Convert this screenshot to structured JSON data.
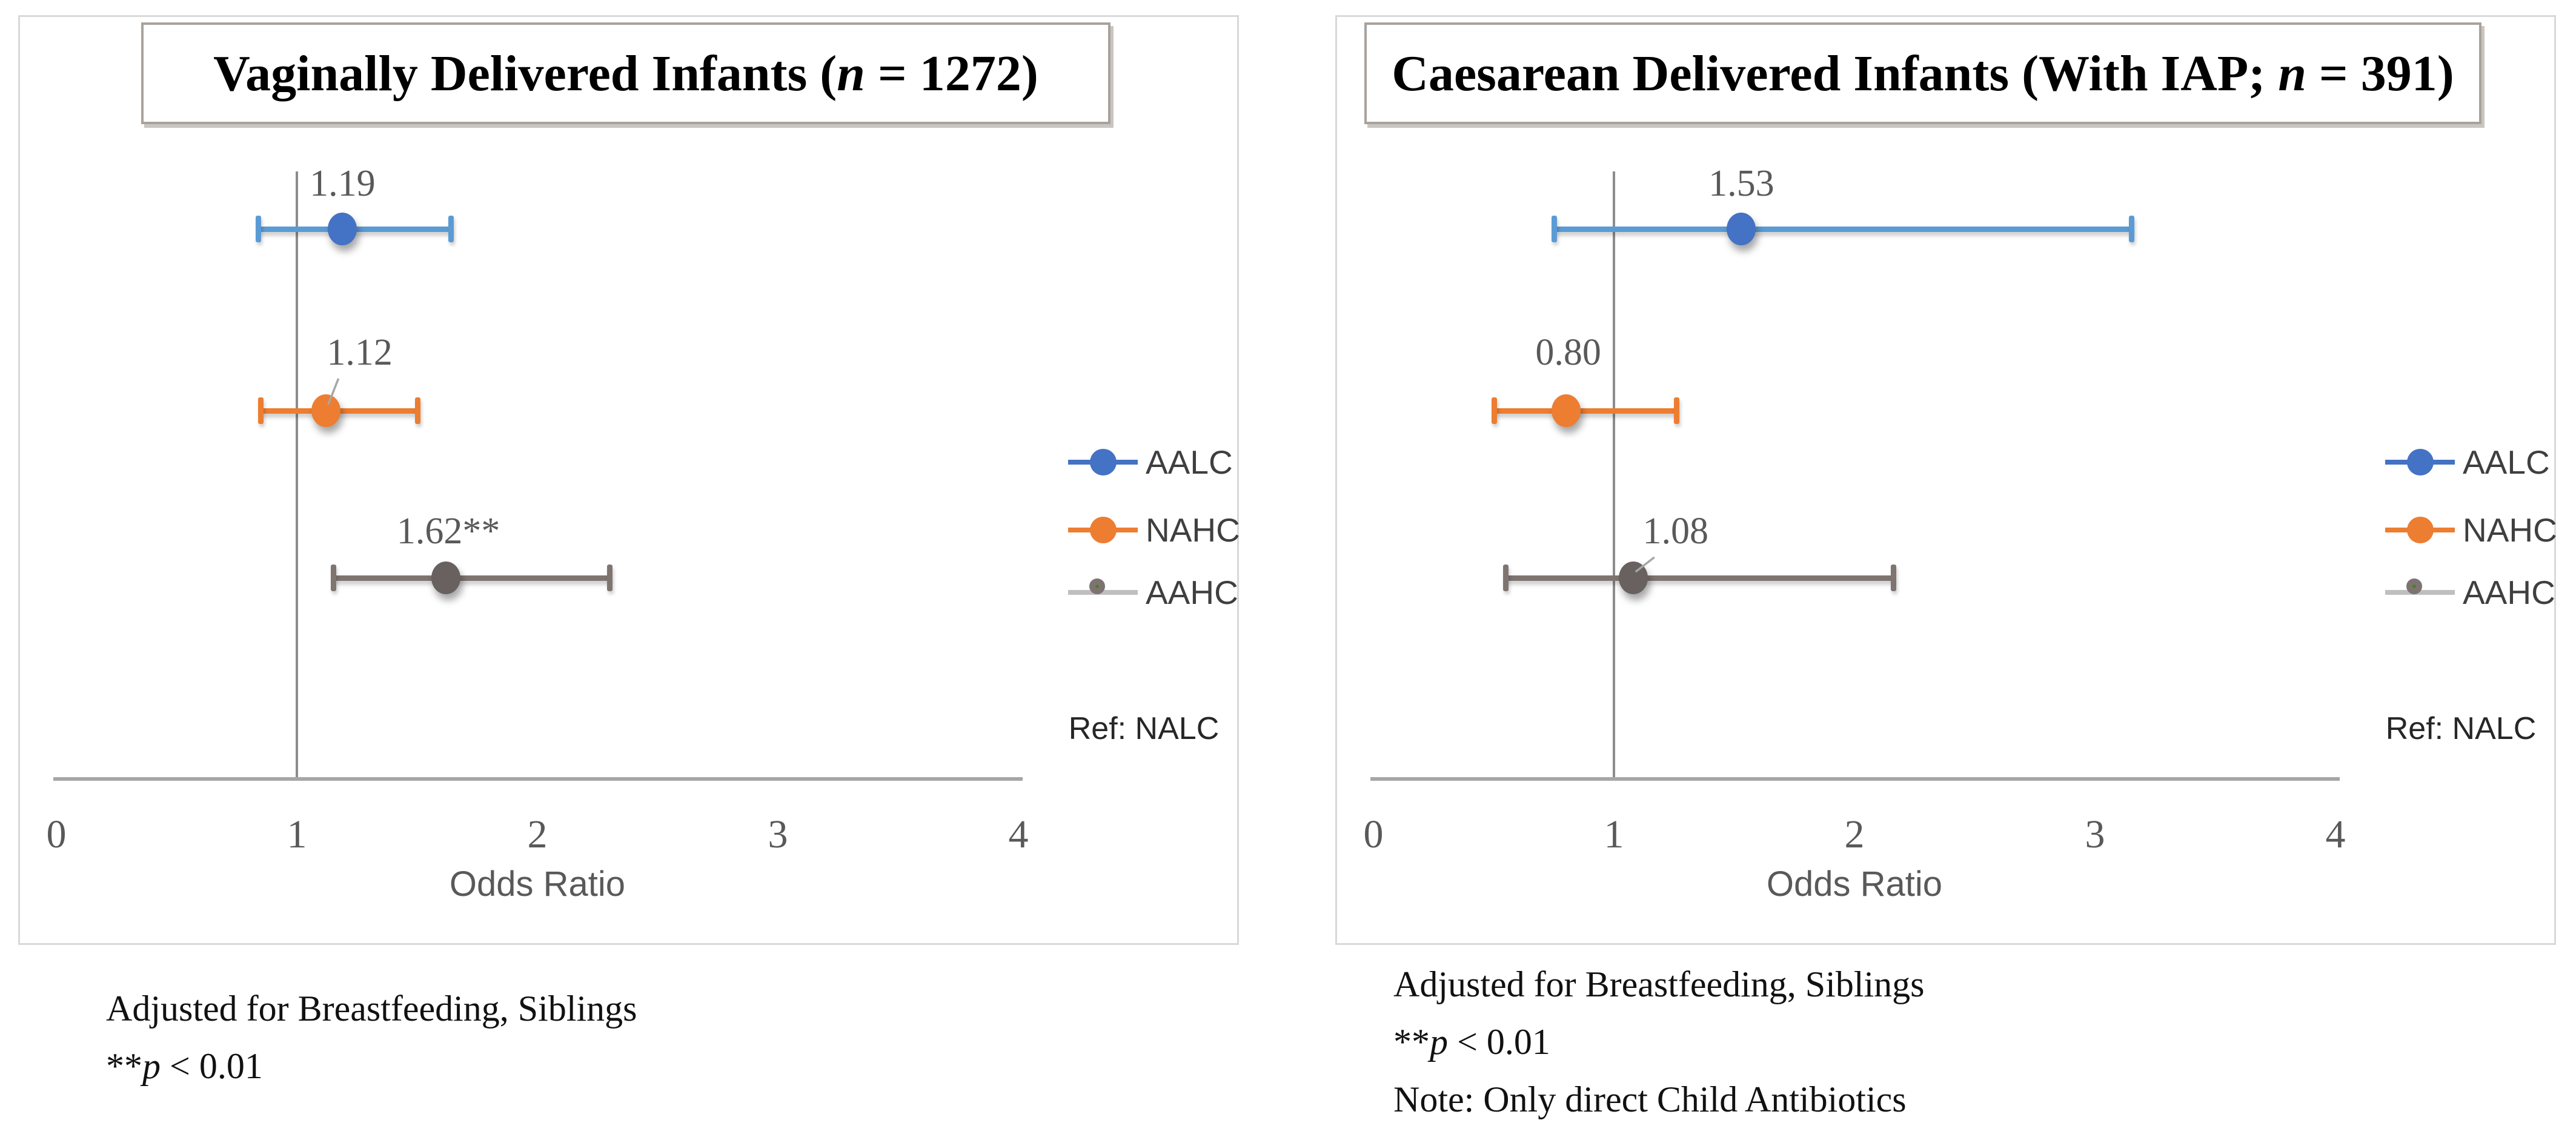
{
  "figure": {
    "background": "#ffffff"
  },
  "chart_data": [
    {
      "type": "scatter",
      "variant": "forest-plot",
      "title_plain": "Vaginally Delivered Infants (n = 1272)",
      "title_segments": [
        {
          "t": "Vaginally Delivered Infants ("
        },
        {
          "t": "n",
          "i": true
        },
        {
          "t": " = 1272)"
        }
      ],
      "xlabel": "Odds Ratio",
      "xlim": [
        0,
        4
      ],
      "xticks": [
        "0",
        "1",
        "2",
        "3",
        "4"
      ],
      "grid": false,
      "reference_line_x": 1,
      "reference_note": "Ref: NALC",
      "legend_position": "right",
      "series": [
        {
          "name": "AALC",
          "odds_ratio": 1.19,
          "ci_low": 0.84,
          "ci_high": 1.64,
          "data_label": "1.19",
          "significant": false,
          "bar_color": "#5b9bd5",
          "marker_color": "#4472c4",
          "label_dx": 0,
          "leader": false
        },
        {
          "name": "NAHC",
          "odds_ratio": 1.12,
          "ci_low": 0.85,
          "ci_high": 1.5,
          "data_label": "1.12",
          "significant": false,
          "bar_color": "#ed7d31",
          "marker_color": "#ed7d31",
          "label_dx": 56,
          "leader": true
        },
        {
          "name": "AAHC",
          "odds_ratio": 1.62,
          "ci_low": 1.15,
          "ci_high": 2.3,
          "data_label": "1.62**",
          "significant": true,
          "bar_color": "#7e7571",
          "marker_color": "#696160",
          "label_dx": 4,
          "leader": false
        }
      ],
      "legend": [
        {
          "label": "AALC",
          "line_color": "#4472c4",
          "dot_color": "#4472c4",
          "dot_ring": "#4472c4"
        },
        {
          "label": "NAHC",
          "line_color": "#ed7d31",
          "dot_color": "#ed7d31",
          "dot_ring": "#ed7d31"
        },
        {
          "label": "AAHC",
          "line_color": "#bfbfbf",
          "dot_color": "#4e7d2a",
          "dot_ring": "#7d7471"
        }
      ],
      "footnotes_plain": [
        "Adjusted for Breastfeeding, Siblings",
        "**p < 0.01"
      ],
      "footnote_segments": [
        [
          {
            "t": "Adjusted for Breastfeeding,  Siblings"
          }
        ],
        [
          {
            "t": "**"
          },
          {
            "t": "p",
            "i": true
          },
          {
            "t": " < 0.01"
          }
        ]
      ]
    },
    {
      "type": "scatter",
      "variant": "forest-plot",
      "title_plain": "Caesarean Delivered Infants (With IAP; n = 391)",
      "title_segments": [
        {
          "t": "Caesarean Delivered Infants (With IAP; "
        },
        {
          "t": "n",
          "i": true
        },
        {
          "t": " = 391)"
        }
      ],
      "xlabel": "Odds Ratio",
      "xlim": [
        0,
        4
      ],
      "xticks": [
        "0",
        "1",
        "2",
        "3",
        "4"
      ],
      "grid": false,
      "reference_line_x": 1,
      "reference_note": "Ref: NALC",
      "legend_position": "right",
      "series": [
        {
          "name": "AALC",
          "odds_ratio": 1.53,
          "ci_low": 0.75,
          "ci_high": 3.15,
          "data_label": "1.53",
          "significant": false,
          "bar_color": "#5b9bd5",
          "marker_color": "#4472c4",
          "label_dx": 0,
          "leader": false
        },
        {
          "name": "NAHC",
          "odds_ratio": 0.8,
          "ci_low": 0.5,
          "ci_high": 1.26,
          "data_label": "0.80",
          "significant": false,
          "bar_color": "#ed7d31",
          "marker_color": "#ed7d31",
          "label_dx": 4,
          "leader": false
        },
        {
          "name": "AAHC",
          "odds_ratio": 1.08,
          "ci_low": 0.55,
          "ci_high": 2.16,
          "data_label": "1.08",
          "significant": false,
          "bar_color": "#7e7571",
          "marker_color": "#696160",
          "label_dx": 70,
          "leader": true
        }
      ],
      "legend": [
        {
          "label": "AALC",
          "line_color": "#4472c4",
          "dot_color": "#4472c4",
          "dot_ring": "#4472c4"
        },
        {
          "label": "NAHC",
          "line_color": "#ed7d31",
          "dot_color": "#ed7d31",
          "dot_ring": "#ed7d31"
        },
        {
          "label": "AAHC",
          "line_color": "#bfbfbf",
          "dot_color": "#4e7d2a",
          "dot_ring": "#7d7471"
        }
      ],
      "footnotes_plain": [
        "Adjusted for Breastfeeding, Siblings",
        "**p < 0.01",
        "Note: Only direct Child Antibiotics"
      ],
      "footnote_segments": [
        [
          {
            "t": "Adjusted for Breastfeeding,  Siblings"
          }
        ],
        [
          {
            "t": "**"
          },
          {
            "t": "p",
            "i": true
          },
          {
            "t": " < 0.01"
          }
        ],
        [
          {
            "t": "Note: Only direct Child Antibiotics"
          }
        ]
      ]
    }
  ]
}
